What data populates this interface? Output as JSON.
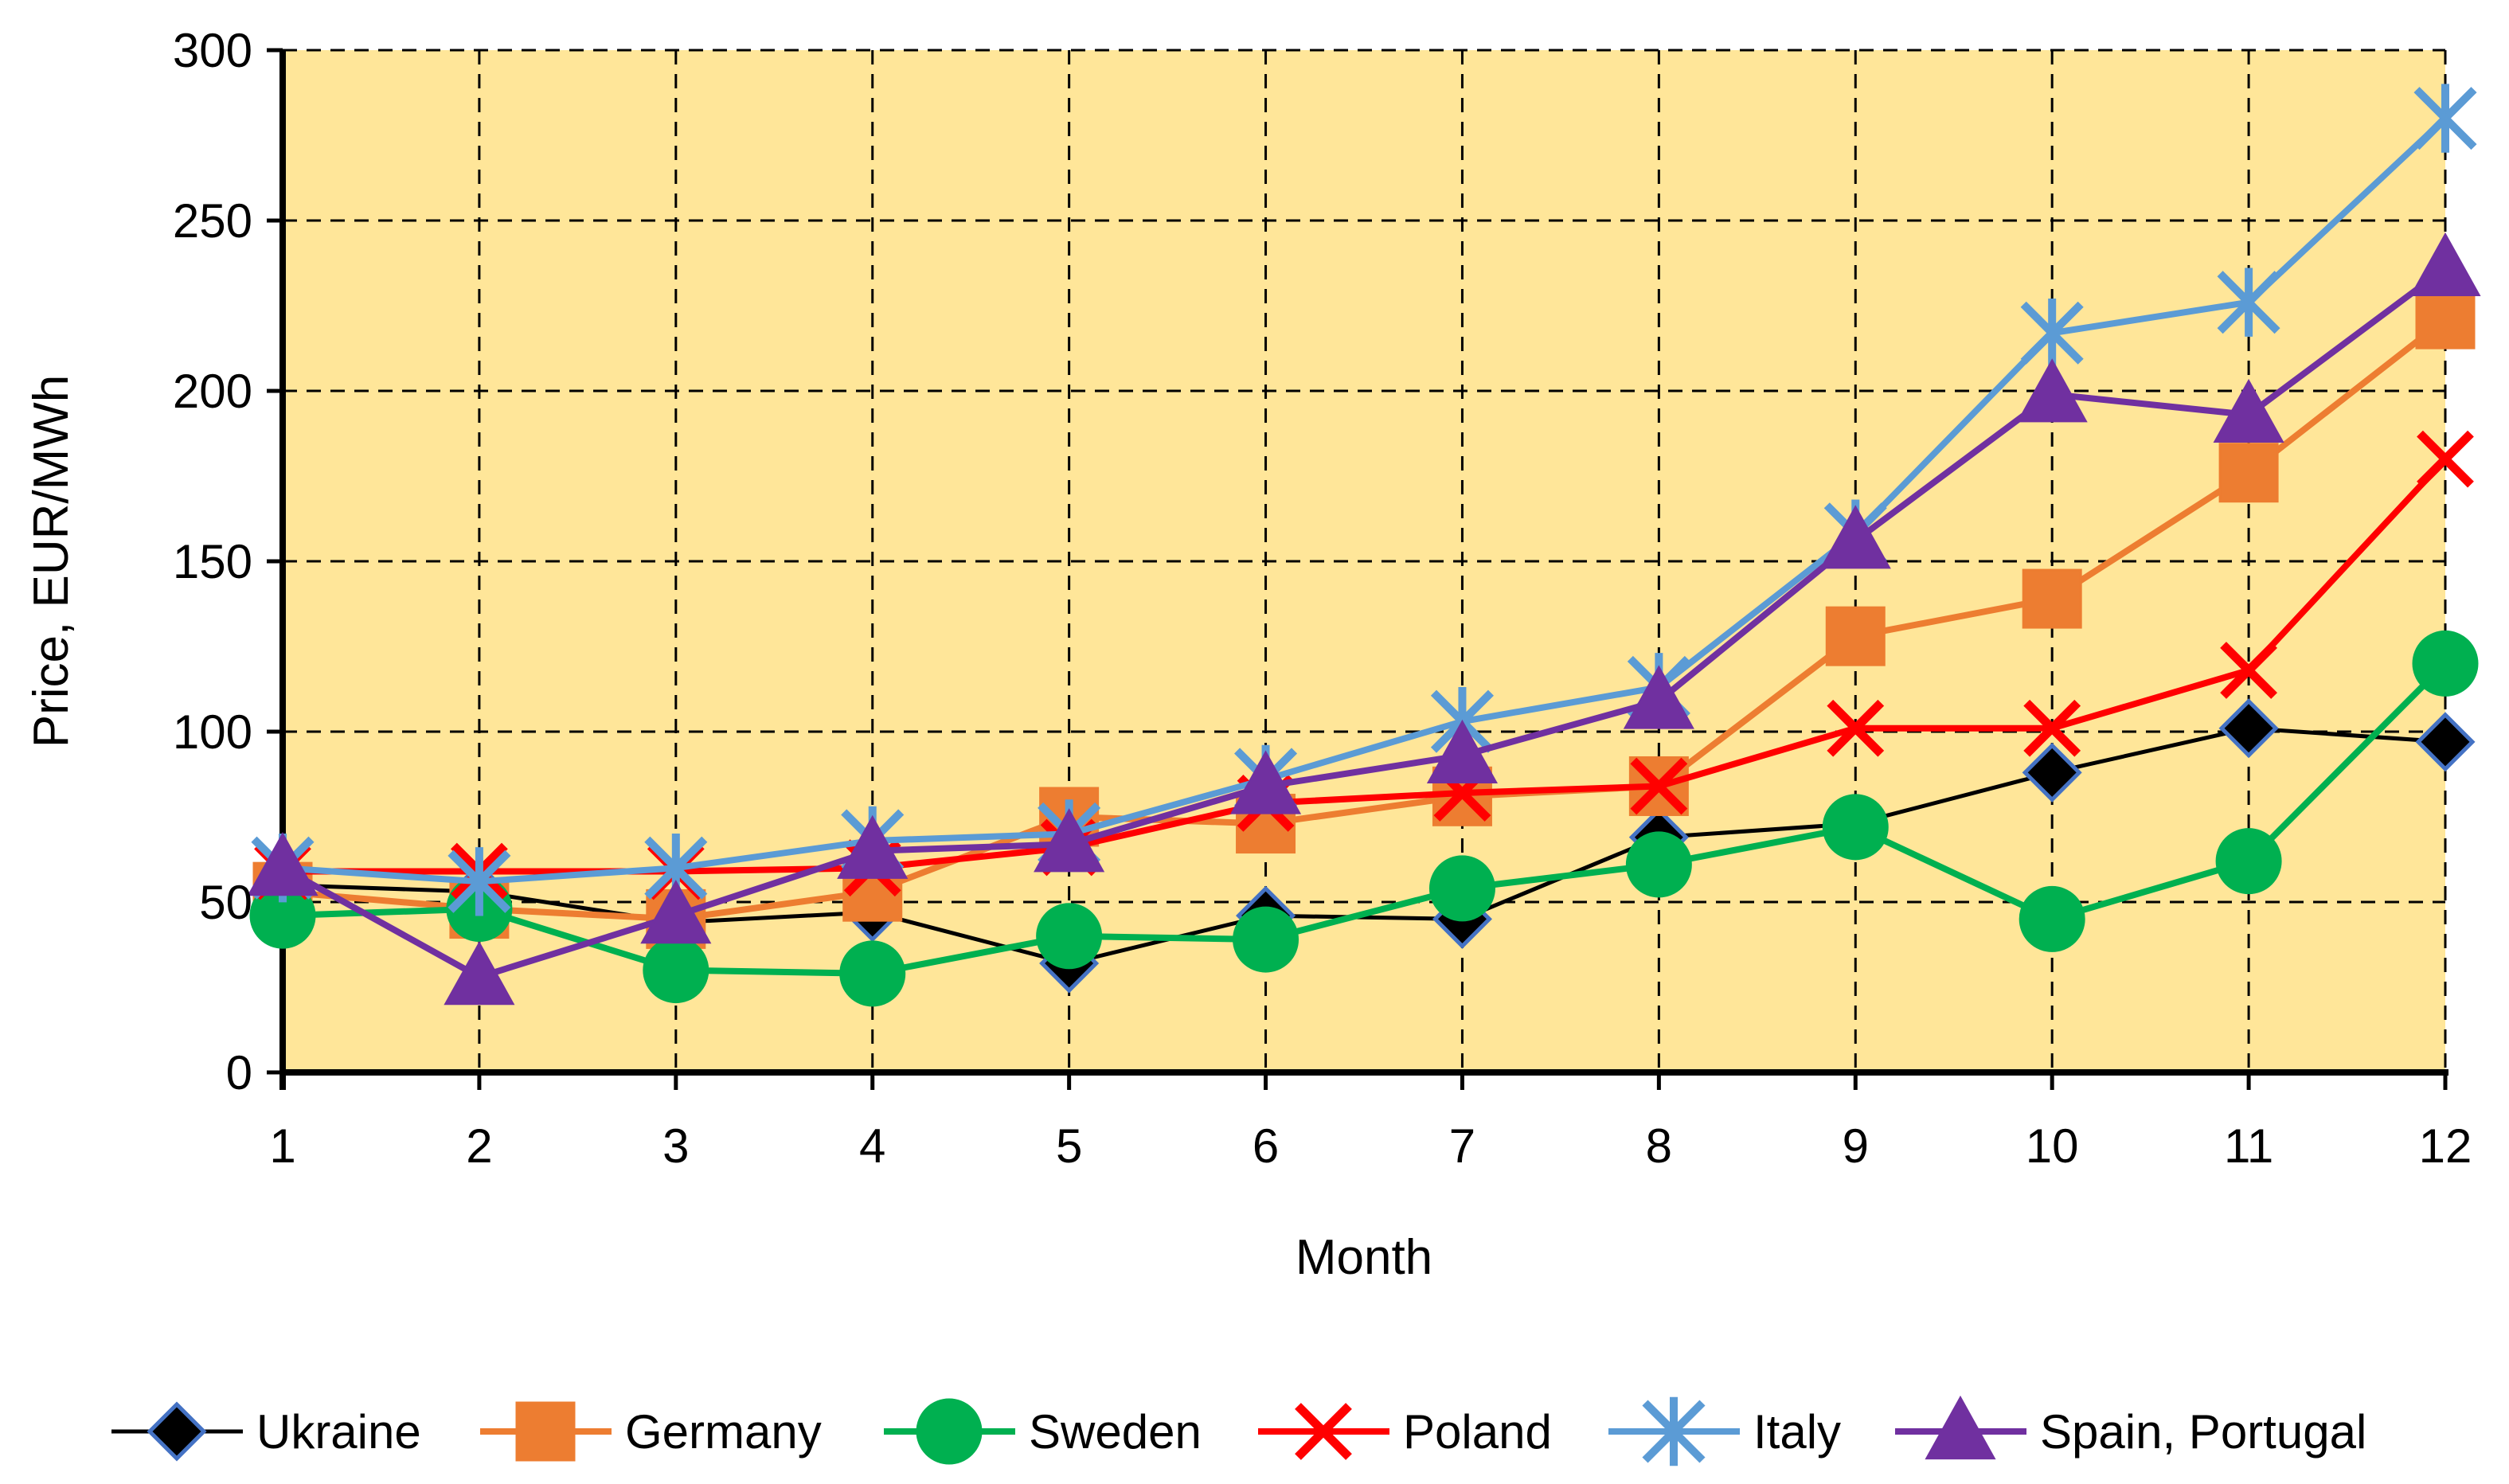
{
  "chart_data": {
    "type": "line",
    "xlabel": "Month",
    "ylabel": "Price, EUR/MWh",
    "x": [
      1,
      2,
      3,
      4,
      5,
      6,
      7,
      8,
      9,
      10,
      11,
      12
    ],
    "xlim": [
      1,
      12
    ],
    "ylim": [
      0,
      300
    ],
    "yticks": [
      0,
      50,
      100,
      150,
      200,
      250,
      300
    ],
    "grid": true,
    "plot_background": "#FFE699",
    "legend_position": "bottom",
    "series": [
      {
        "name": "Ukraine",
        "color": "#000000",
        "marker": "diamond",
        "marker_fill": "#000000",
        "marker_stroke": "#4472C4",
        "values": [
          55,
          53,
          44,
          47,
          32,
          46,
          45,
          69,
          73,
          88,
          101,
          97
        ]
      },
      {
        "name": "Germany",
        "color": "#ED7D31",
        "marker": "square",
        "marker_fill": "#ED7D31",
        "marker_stroke": "#ED7D31",
        "values": [
          53,
          48,
          45,
          53,
          75,
          73,
          81,
          84,
          128,
          139,
          176,
          221
        ]
      },
      {
        "name": "Sweden",
        "color": "#00B050",
        "marker": "circle",
        "marker_fill": "#00B050",
        "marker_stroke": "#00B050",
        "values": [
          46,
          48,
          30,
          29,
          40,
          39,
          54,
          61,
          72,
          45,
          62,
          120
        ]
      },
      {
        "name": "Poland",
        "color": "#FF0000",
        "marker": "x",
        "marker_fill": "none",
        "marker_stroke": "#FF0000",
        "values": [
          59,
          59,
          59,
          60,
          66,
          79,
          82,
          84,
          101,
          101,
          118,
          180
        ]
      },
      {
        "name": "Italy",
        "color": "#5B9BD5",
        "marker": "asterisk",
        "marker_fill": "none",
        "marker_stroke": "#5B9BD5",
        "values": [
          60,
          56,
          60,
          68,
          70,
          86,
          103,
          113,
          158,
          217,
          226,
          280
        ]
      },
      {
        "name": "Spain, Portugal",
        "color": "#7030A0",
        "marker": "triangle",
        "marker_fill": "#7030A0",
        "marker_stroke": "#7030A0",
        "values": [
          60,
          28,
          46,
          65,
          67,
          84,
          93,
          109,
          156,
          199,
          193,
          236
        ]
      }
    ]
  }
}
